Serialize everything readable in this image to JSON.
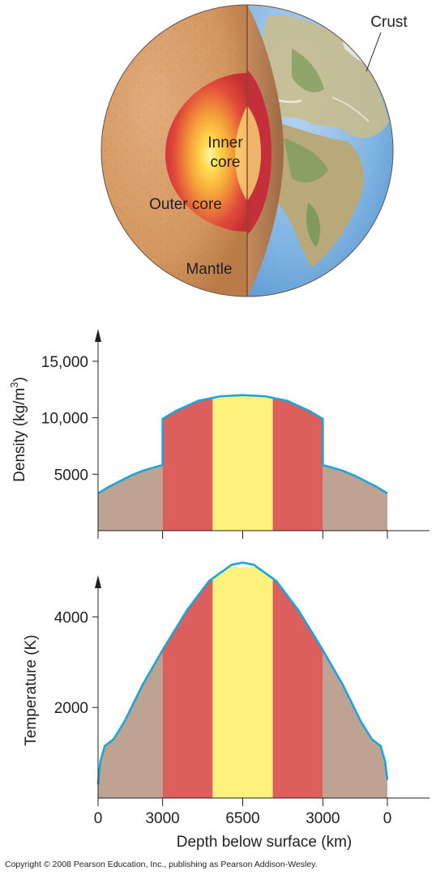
{
  "earth": {
    "labels": {
      "crust": "Crust",
      "inner_core_line1": "Inner",
      "inner_core_line2": "core",
      "outer_core": "Outer core",
      "mantle": "Mantle"
    },
    "colors": {
      "mantle": "#d59a6b",
      "outer_core": "#d23a3a",
      "inner_core": "#ffd84a",
      "ocean": "#5a9fd8",
      "land": "#9fae7a"
    }
  },
  "chart_data": [
    {
      "type": "area",
      "ylabel": "Density (kg/m",
      "ylabel_superscript": "3",
      "ylabel_close": ")",
      "yticks": [
        5000,
        10000,
        15000
      ],
      "ytick_labels": [
        "5000",
        "10,000",
        "15,000"
      ],
      "ylim": [
        0,
        16500
      ],
      "x": [
        0,
        500,
        1000,
        1500,
        2000,
        2500,
        2900,
        2900,
        3500,
        4500,
        5500,
        6500,
        7500,
        8500,
        9500,
        10100,
        10100,
        10500,
        11000,
        11500,
        12000,
        12500,
        13000
      ],
      "values": [
        3300,
        3900,
        4400,
        4900,
        5300,
        5600,
        5800,
        9900,
        10600,
        11500,
        11900,
        12000,
        11900,
        11500,
        10600,
        9900,
        5800,
        5600,
        5300,
        4900,
        4400,
        3900,
        3300
      ],
      "xlim": [
        0,
        13000
      ],
      "bands": [
        {
          "from": 0,
          "to": 2900,
          "color": "#bfa392"
        },
        {
          "from": 2900,
          "to": 5150,
          "color": "#dd5f5d"
        },
        {
          "from": 5150,
          "to": 7850,
          "color": "#fdf37c"
        },
        {
          "from": 7850,
          "to": 10100,
          "color": "#dd5f5d"
        },
        {
          "from": 10100,
          "to": 13000,
          "color": "#bfa392"
        }
      ],
      "line_color": "#1ba5dc",
      "grid": false
    },
    {
      "type": "area",
      "ylabel": "Temperature (K)",
      "yticks": [
        2000,
        4000
      ],
      "ytick_labels": [
        "2000",
        "4000"
      ],
      "ylim": [
        0,
        5100
      ],
      "x": [
        0,
        100,
        300,
        700,
        1200,
        2000,
        3000,
        4000,
        5000,
        6000,
        6500,
        7000,
        8000,
        9000,
        10000,
        11000,
        11800,
        12300,
        12700,
        12900,
        13000
      ],
      "values": [
        300,
        800,
        1150,
        1300,
        1700,
        2500,
        3350,
        4150,
        4800,
        5150,
        5200,
        5150,
        4800,
        4150,
        3350,
        2500,
        1700,
        1300,
        1150,
        800,
        400
      ],
      "xlim": [
        0,
        13000
      ],
      "bands": [
        {
          "from": 0,
          "to": 2900,
          "color": "#bfa392"
        },
        {
          "from": 2900,
          "to": 5150,
          "color": "#dd5f5d"
        },
        {
          "from": 5150,
          "to": 7850,
          "color": "#fdf37c"
        },
        {
          "from": 7850,
          "to": 10100,
          "color": "#dd5f5d"
        },
        {
          "from": 10100,
          "to": 13000,
          "color": "#bfa392"
        }
      ],
      "line_color": "#1ba5dc",
      "grid": false,
      "xticks": [
        0,
        2900,
        6500,
        10100,
        13000
      ],
      "xtick_labels": [
        "0",
        "3000",
        "6500",
        "3000",
        "0"
      ],
      "xlabel": "Depth below surface (km)"
    }
  ],
  "copyright": "Copyright © 2008 Pearson Education, Inc., publishing as Pearson Addison-Wesley."
}
